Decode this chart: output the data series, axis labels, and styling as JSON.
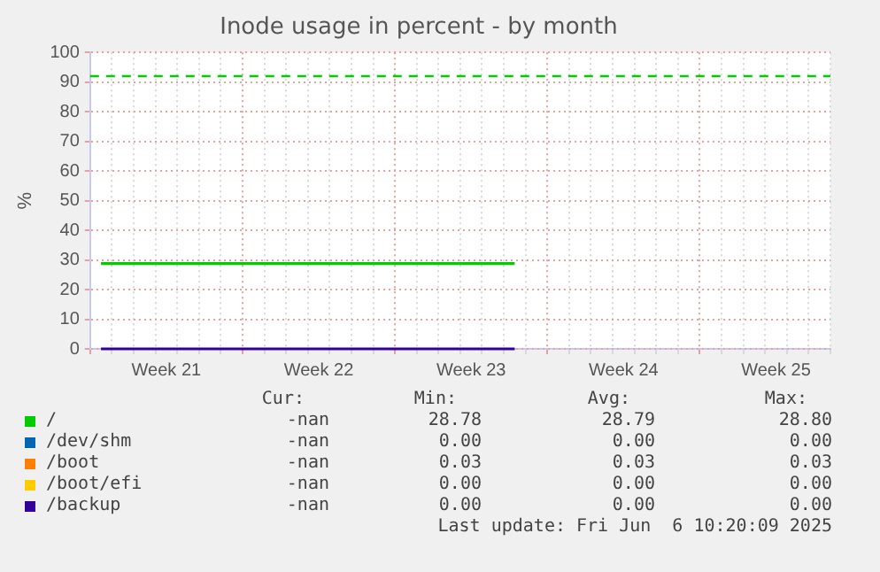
{
  "chart_data": {
    "type": "line",
    "title": "Inode usage in percent - by month",
    "ylabel": "%",
    "ylim": [
      0,
      100
    ],
    "categories": [
      null,
      null,
      null,
      "Week 21",
      null,
      null,
      null,
      null,
      null,
      null,
      "Week 22",
      null,
      null,
      null,
      null,
      null,
      null,
      "Week 23",
      null,
      null,
      null,
      null,
      null,
      null,
      "Week 24",
      null,
      null,
      null,
      null,
      null,
      null,
      "Week 25",
      null,
      null
    ],
    "yticks": [
      0,
      10,
      20,
      30,
      40,
      50,
      60,
      70,
      80,
      90,
      100
    ],
    "grid": true,
    "legend": "bottom",
    "marker": "none",
    "series": [
      {
        "name": "/",
        "color": "#00cc00",
        "values": [
          28.8,
          28.8,
          28.8,
          28.8,
          28.8,
          28.8,
          28.8,
          28.8,
          28.8,
          28.8,
          28.8,
          28.8,
          28.8,
          28.8,
          28.8,
          28.8,
          28.8,
          28.8,
          28.8,
          28.8,
          null,
          null,
          null,
          null,
          null,
          null,
          null,
          null,
          null,
          null,
          null,
          null,
          null,
          null
        ]
      },
      {
        "name": "/dev/shm",
        "color": "#0066b3",
        "values": [
          null,
          null,
          null,
          null,
          null,
          null,
          null,
          null,
          null,
          null,
          null,
          null,
          null,
          null,
          null,
          null,
          null,
          null,
          null,
          null,
          null,
          null,
          null,
          null,
          null,
          null,
          null,
          null,
          null,
          null,
          null,
          null,
          null,
          null
        ]
      },
      {
        "name": "/boot",
        "color": "#ff8000",
        "values": [
          null,
          null,
          null,
          null,
          null,
          null,
          null,
          null,
          null,
          null,
          null,
          null,
          null,
          null,
          null,
          null,
          null,
          null,
          null,
          null,
          null,
          null,
          null,
          null,
          null,
          null,
          null,
          null,
          null,
          null,
          null,
          null,
          null,
          null
        ]
      },
      {
        "name": "/boot/efi",
        "color": "#ffcc00",
        "values": [
          null,
          null,
          null,
          null,
          null,
          null,
          null,
          null,
          null,
          null,
          null,
          null,
          null,
          null,
          null,
          null,
          null,
          null,
          null,
          null,
          null,
          null,
          null,
          null,
          null,
          null,
          null,
          null,
          null,
          null,
          null,
          null,
          null,
          null
        ]
      },
      {
        "name": "/backup",
        "color": "#330099",
        "values": [
          0,
          0,
          0,
          0,
          0,
          0,
          0,
          0,
          0,
          0,
          0,
          0,
          0,
          0,
          0,
          0,
          0,
          0,
          0,
          0,
          null,
          null,
          null,
          null,
          null,
          null,
          null,
          null,
          null,
          null,
          null,
          null,
          null,
          null
        ]
      }
    ],
    "ref_lines": [
      {
        "axis": "y",
        "value": 92,
        "color": "#00cc00",
        "line_style": "dashed"
      }
    ],
    "annotations": [
      "Cur:",
      "Min:",
      "Avg:",
      "Max:",
      "-nan",
      "28.78",
      "28.79",
      "28.80",
      "-nan",
      "0.00",
      "0.00",
      "0.00",
      "-nan",
      "0.03",
      "0.03",
      "0.03",
      "-nan",
      "0.00",
      "0.00",
      "0.00",
      "-nan",
      "0.00",
      "0.00",
      "0.00",
      "Last update: Fri Jun  6 10:20:09 2025"
    ]
  }
}
